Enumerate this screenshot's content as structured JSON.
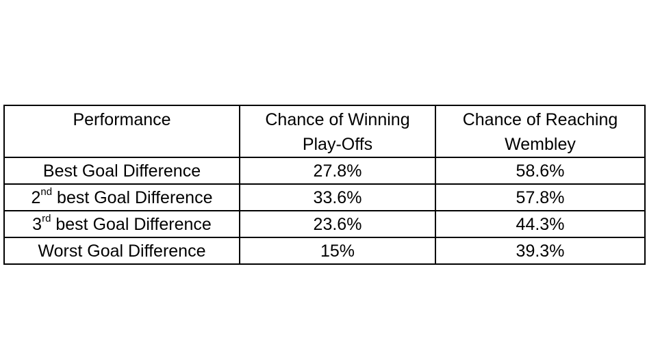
{
  "table": {
    "headers": [
      {
        "lines": [
          "Performance"
        ]
      },
      {
        "lines": [
          "Chance of Winning",
          "Play-Offs"
        ]
      },
      {
        "lines": [
          "Chance of Reaching",
          "Wembley"
        ]
      }
    ],
    "rows": [
      {
        "prefix": "",
        "sup": "",
        "label": "Best Goal Difference",
        "winning": "27.8%",
        "reaching": "58.6%"
      },
      {
        "prefix": "2",
        "sup": "nd",
        "label": " best Goal Difference",
        "winning": "33.6%",
        "reaching": "57.8%"
      },
      {
        "prefix": "3",
        "sup": "rd",
        "label": " best Goal Difference",
        "winning": "23.6%",
        "reaching": "44.3%"
      },
      {
        "prefix": "",
        "sup": "",
        "label": "Worst Goal Difference",
        "winning": "15%",
        "reaching": "39.3%"
      }
    ]
  }
}
